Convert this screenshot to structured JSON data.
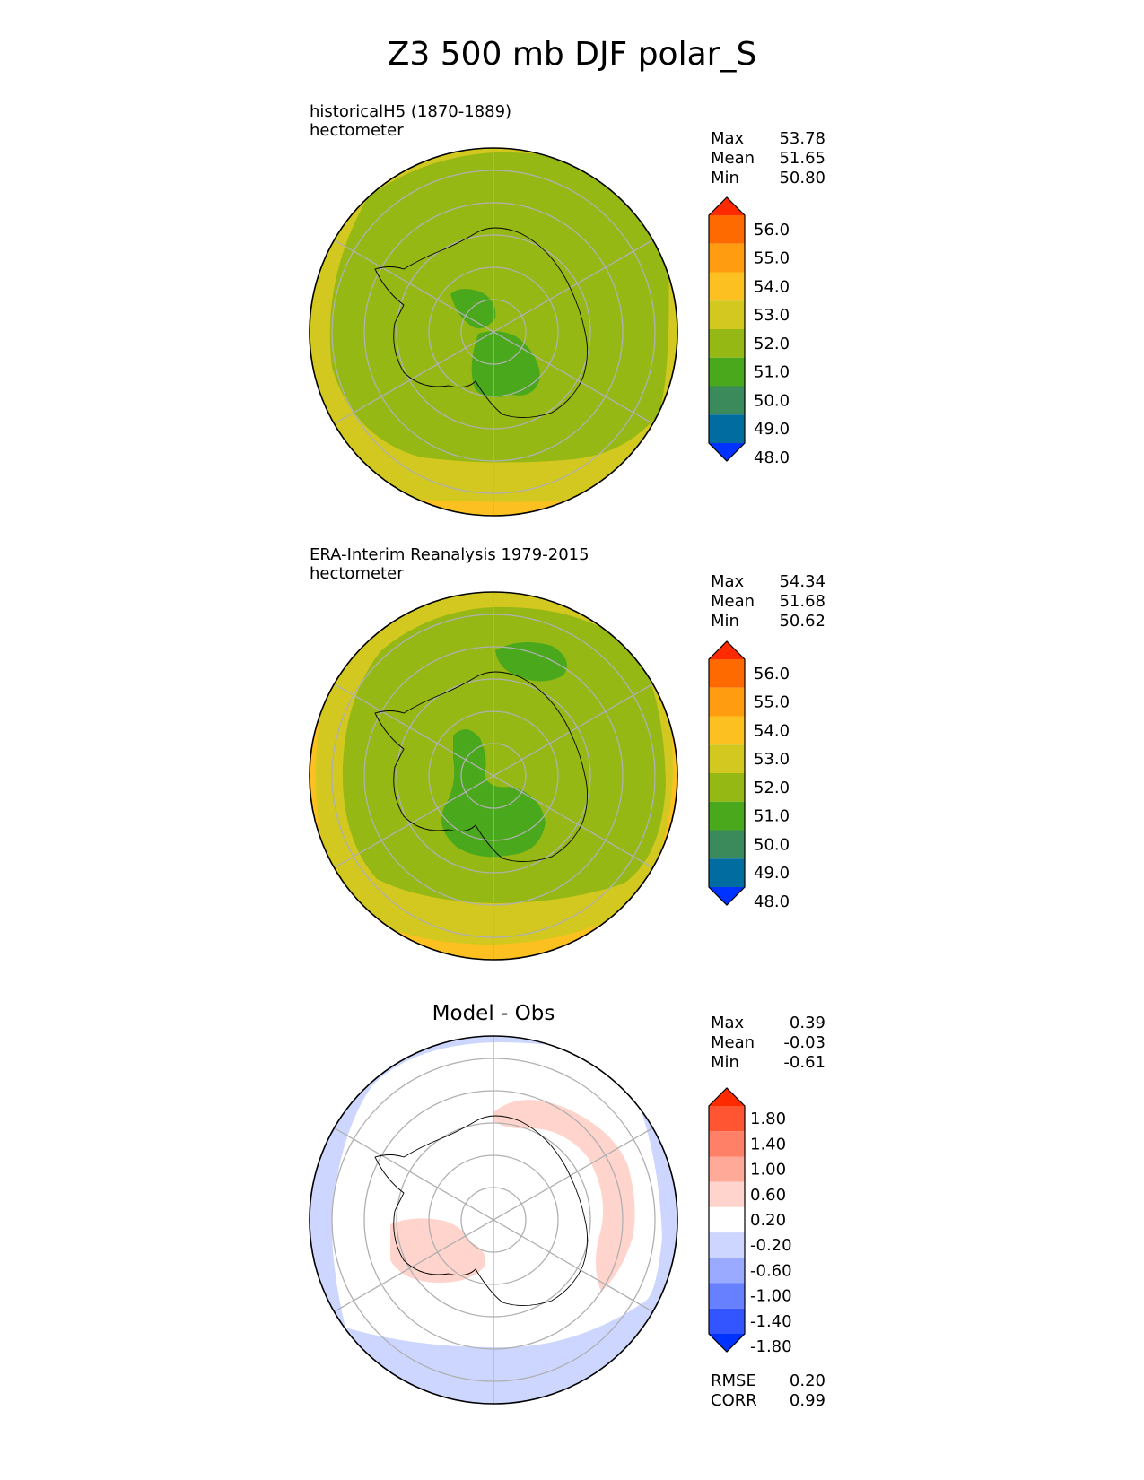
{
  "figure_title": "Z3 500 mb DJF polar_S",
  "colors": {
    "levels_abs": [
      "#0033ff",
      "#006ca0",
      "#3a8a5c",
      "#4aa81c",
      "#96b814",
      "#d2c820",
      "#fcc020",
      "#ff9c10",
      "#ff6a00",
      "#ff2a00"
    ],
    "levels_diff": [
      "#0033ff",
      "#3355ff",
      "#6680ff",
      "#99aaff",
      "#ccd6ff",
      "#ffffff",
      "#ffd4cc",
      "#ffaa99",
      "#ff8066",
      "#ff5533",
      "#ff2a00"
    ],
    "grid": "#b0b0b0",
    "coast": "#000000"
  },
  "panels": [
    {
      "id": "model",
      "label_line1": "historicalH5 (1870-1889)",
      "label_line2": "hectometer",
      "stats": [
        {
          "name": "Max",
          "value": "53.78"
        },
        {
          "name": "Mean",
          "value": "51.65"
        },
        {
          "name": "Min",
          "value": "50.80"
        }
      ],
      "colorbar_ticks": [
        "56.0",
        "55.0",
        "54.0",
        "53.0",
        "52.0",
        "51.0",
        "50.0",
        "49.0",
        "48.0"
      ]
    },
    {
      "id": "obs",
      "label_line1": "ERA-Interim Reanalysis 1979-2015",
      "label_line2": "hectometer",
      "stats": [
        {
          "name": "Max",
          "value": "54.34"
        },
        {
          "name": "Mean",
          "value": "51.68"
        },
        {
          "name": "Min",
          "value": "50.62"
        }
      ],
      "colorbar_ticks": [
        "56.0",
        "55.0",
        "54.0",
        "53.0",
        "52.0",
        "51.0",
        "50.0",
        "49.0",
        "48.0"
      ]
    },
    {
      "id": "diff",
      "title": "Model - Obs",
      "stats": [
        {
          "name": "Max",
          "value": "0.39"
        },
        {
          "name": "Mean",
          "value": "-0.03"
        },
        {
          "name": "Min",
          "value": "-0.61"
        }
      ],
      "colorbar_ticks": [
        "1.80",
        "1.40",
        "1.00",
        "0.60",
        "0.20",
        "-0.20",
        "-0.60",
        "-1.00",
        "-1.40",
        "-1.80"
      ],
      "extra_stats": [
        {
          "name": "RMSE",
          "value": "0.20"
        },
        {
          "name": "CORR",
          "value": "0.99"
        }
      ]
    }
  ],
  "chart_data": [
    {
      "type": "heatmap",
      "projection": "south-polar-stereographic",
      "title": "historicalH5 (1870-1889)",
      "units": "hectometer",
      "colorbar_levels": [
        48.0,
        49.0,
        50.0,
        51.0,
        52.0,
        53.0,
        54.0,
        55.0,
        56.0
      ],
      "colorbar_extend": "both",
      "stats": {
        "max": 53.78,
        "mean": 51.65,
        "min": 50.8
      }
    },
    {
      "type": "heatmap",
      "projection": "south-polar-stereographic",
      "title": "ERA-Interim Reanalysis 1979-2015",
      "units": "hectometer",
      "colorbar_levels": [
        48.0,
        49.0,
        50.0,
        51.0,
        52.0,
        53.0,
        54.0,
        55.0,
        56.0
      ],
      "colorbar_extend": "both",
      "stats": {
        "max": 54.34,
        "mean": 51.68,
        "min": 50.62
      }
    },
    {
      "type": "heatmap",
      "projection": "south-polar-stereographic",
      "title": "Model - Obs",
      "colorbar_levels": [
        -1.8,
        -1.4,
        -1.0,
        -0.6,
        -0.2,
        0.2,
        0.6,
        1.0,
        1.4,
        1.8
      ],
      "colorbar_extend": "both",
      "stats": {
        "max": 0.39,
        "mean": -0.03,
        "min": -0.61,
        "rmse": 0.2,
        "corr": 0.99
      }
    }
  ]
}
